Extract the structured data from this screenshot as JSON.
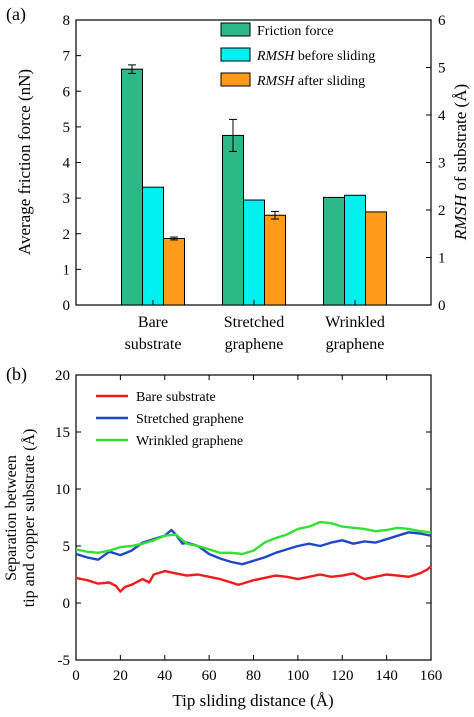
{
  "panels": {
    "a_label": "(a)",
    "b_label": "(b)"
  },
  "chart_data": [
    {
      "panel": "(a)",
      "type": "bar",
      "title": "",
      "categories": [
        [
          "Bare",
          "substrate"
        ],
        [
          "Stretched",
          "graphene"
        ],
        [
          "Wrinkled",
          "graphene"
        ]
      ],
      "ylabel_left": "Average friction force (nN)",
      "ylabel_right": "RMSH of substrate (Å)",
      "ylim_left": [
        0,
        8
      ],
      "ylim_right": [
        0,
        6
      ],
      "yticks_left": [
        "0",
        "1",
        "2",
        "3",
        "4",
        "5",
        "6",
        "7",
        "8"
      ],
      "yticks_right": [
        "0",
        "1",
        "2",
        "3",
        "4",
        "5",
        "6"
      ],
      "series": [
        {
          "name_italic": "",
          "name_rest": "Friction force",
          "axis": "left",
          "color": "#2db888",
          "values": [
            6.62,
            4.76,
            3.02
          ],
          "errors": [
            0.12,
            0.45,
            0.0
          ]
        },
        {
          "name_italic": "RMSH",
          "name_rest": " before sliding",
          "axis": "right",
          "color": "#00f0f0",
          "values": [
            2.48,
            2.21,
            2.31
          ],
          "errors": [
            0,
            0,
            0
          ]
        },
        {
          "name_italic": "RMSH",
          "name_rest": " after sliding",
          "axis": "right",
          "color": "#ff9a1a",
          "values": [
            1.4,
            1.89,
            1.96
          ],
          "errors": [
            0.03,
            0.08,
            0
          ]
        }
      ],
      "legend": "top-right"
    },
    {
      "panel": "(b)",
      "type": "line",
      "title": "",
      "xlabel": "Tip sliding distance (Å)",
      "ylabel": [
        "Separation between",
        "tip and copper substrate (Å)"
      ],
      "xlim": [
        0,
        160
      ],
      "ylim": [
        -5,
        20
      ],
      "xticks": [
        "0",
        "20",
        "40",
        "60",
        "80",
        "100",
        "120",
        "140",
        "160"
      ],
      "yticks": [
        "-5",
        "0",
        "5",
        "10",
        "15",
        "20"
      ],
      "series": [
        {
          "name": "Bare substrate",
          "color": "#ee1c1c",
          "x": [
            0,
            5,
            10,
            15,
            18,
            20,
            22,
            25,
            30,
            33,
            35,
            40,
            45,
            50,
            55,
            60,
            65,
            70,
            73,
            75,
            80,
            85,
            90,
            95,
            100,
            105,
            110,
            115,
            120,
            125,
            130,
            135,
            140,
            145,
            150,
            155,
            158,
            160
          ],
          "y": [
            2.2,
            2.0,
            1.7,
            1.8,
            1.5,
            1.0,
            1.4,
            1.6,
            2.1,
            1.8,
            2.5,
            2.8,
            2.6,
            2.4,
            2.5,
            2.3,
            2.1,
            1.8,
            1.6,
            1.7,
            2.0,
            2.2,
            2.4,
            2.3,
            2.1,
            2.3,
            2.5,
            2.3,
            2.4,
            2.6,
            2.1,
            2.3,
            2.5,
            2.4,
            2.3,
            2.6,
            2.9,
            3.2
          ]
        },
        {
          "name": "Stretched graphene",
          "color": "#1f47c8",
          "x": [
            0,
            5,
            10,
            15,
            20,
            25,
            30,
            35,
            40,
            43,
            45,
            48,
            50,
            55,
            60,
            65,
            70,
            75,
            80,
            85,
            90,
            95,
            100,
            105,
            110,
            115,
            120,
            125,
            130,
            135,
            140,
            145,
            150,
            155,
            160
          ],
          "y": [
            4.3,
            4.0,
            3.8,
            4.5,
            4.2,
            4.6,
            5.3,
            5.6,
            5.9,
            6.4,
            6.0,
            5.2,
            5.3,
            5.0,
            4.3,
            3.9,
            3.6,
            3.4,
            3.7,
            4.0,
            4.4,
            4.7,
            5.0,
            5.2,
            5.0,
            5.3,
            5.5,
            5.2,
            5.4,
            5.3,
            5.6,
            5.9,
            6.2,
            6.1,
            5.9
          ]
        },
        {
          "name": "Wrinkled graphene",
          "color": "#33e033",
          "x": [
            0,
            5,
            10,
            15,
            20,
            25,
            30,
            35,
            40,
            45,
            50,
            55,
            60,
            65,
            70,
            75,
            80,
            85,
            90,
            95,
            100,
            105,
            110,
            115,
            120,
            125,
            130,
            135,
            140,
            145,
            150,
            155,
            160
          ],
          "y": [
            4.7,
            4.5,
            4.4,
            4.6,
            4.9,
            5.0,
            5.2,
            5.5,
            5.9,
            6.0,
            5.2,
            5.0,
            4.7,
            4.4,
            4.4,
            4.3,
            4.6,
            5.3,
            5.7,
            6.0,
            6.5,
            6.7,
            7.1,
            7.0,
            6.7,
            6.6,
            6.5,
            6.3,
            6.4,
            6.6,
            6.5,
            6.3,
            6.2
          ]
        }
      ],
      "legend": "top-left"
    }
  ]
}
